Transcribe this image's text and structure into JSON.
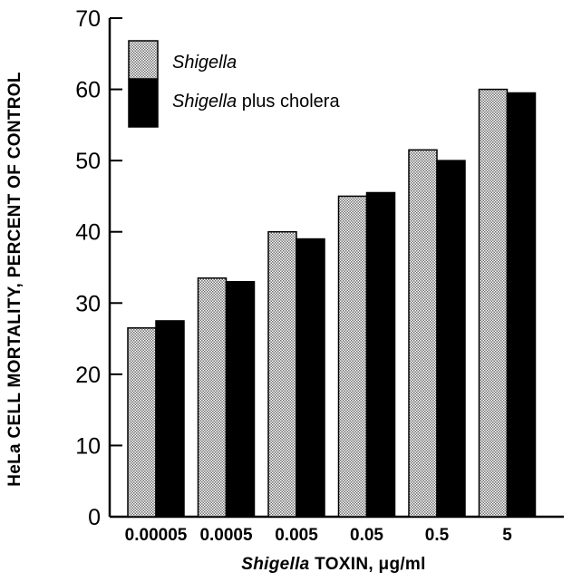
{
  "chart_data": {
    "type": "bar",
    "title": "",
    "categories": [
      "0.00005",
      "0.0005",
      "0.005",
      "0.05",
      "0.5",
      "5"
    ],
    "series": [
      {
        "name": "Shigella",
        "values": [
          26.5,
          33.5,
          40,
          45,
          51.5,
          60
        ],
        "color": "#c8c8c8"
      },
      {
        "name": "Shigella plus cholera",
        "values": [
          27.5,
          33,
          39,
          45.5,
          50,
          59.5
        ],
        "color": "#000000"
      }
    ],
    "ylim": [
      0,
      70
    ],
    "yticks": [
      0,
      10,
      20,
      30,
      40,
      50,
      60,
      70
    ],
    "ylabel": "HeLa CELL MORTALITY, PERCENT OF CONTROL",
    "xlabel": {
      "italic": "Shigella",
      "rest": " TOXIN, μg/ml"
    },
    "legend": {
      "placement": "top-left",
      "entries": [
        {
          "italic": "Shigella",
          "rest": ""
        },
        {
          "italic": "Shigella",
          "rest": " plus cholera"
        }
      ]
    },
    "grid": false
  }
}
